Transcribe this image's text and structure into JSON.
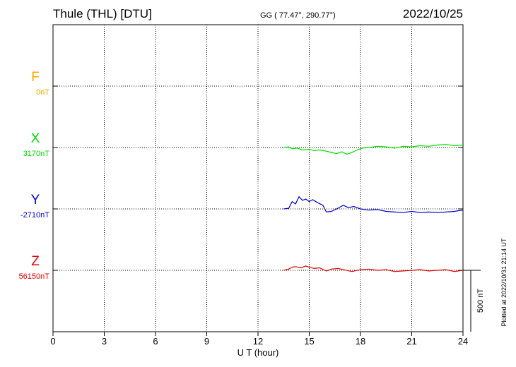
{
  "header": {
    "station": "Thule (THL)  [DTU]",
    "coords": "GG ( 77.47°, 290.77°)",
    "date": "2022/10/25"
  },
  "footer_note": "Plotted at 2022/10/31 21:14 UT",
  "scale_label": "500 nT",
  "colors": {
    "F": "#f5a800",
    "X": "#00dd00",
    "Y": "#0000cc",
    "Z": "#e00000"
  },
  "chart_data": {
    "type": "line",
    "xlabel": "U T (hour)",
    "xlim": [
      0,
      24
    ],
    "xticks": [
      "0",
      "3",
      "6",
      "9",
      "12",
      "15",
      "18",
      "21",
      "24"
    ],
    "grid": true,
    "scale_bar_nT": 500,
    "series": [
      {
        "name": "F",
        "baseline": "0nT",
        "x": [],
        "values": []
      },
      {
        "name": "X",
        "baseline": "3170nT",
        "x": [
          13.5,
          13.8,
          14.0,
          14.3,
          14.6,
          15.0,
          15.3,
          15.6,
          16.0,
          16.3,
          16.6,
          16.9,
          17.2,
          17.5,
          17.8,
          18.1,
          18.5,
          19.0,
          19.5,
          20.0,
          20.5,
          21.0,
          21.5,
          22.0,
          22.5,
          23.0,
          23.5,
          24.0
        ],
        "values": [
          0,
          5,
          -10,
          -5,
          -20,
          -15,
          -25,
          -20,
          -30,
          -40,
          -50,
          -35,
          -55,
          -40,
          -20,
          -5,
          0,
          10,
          5,
          -5,
          10,
          5,
          15,
          10,
          20,
          25,
          15,
          20
        ]
      },
      {
        "name": "Y",
        "baseline": "-2710nT",
        "x": [
          13.5,
          13.8,
          14.0,
          14.2,
          14.4,
          14.6,
          14.8,
          15.0,
          15.2,
          15.5,
          15.8,
          16.0,
          16.3,
          16.6,
          17.0,
          17.3,
          17.6,
          18.0,
          18.5,
          19.0,
          19.5,
          20.0,
          20.5,
          21.0,
          21.5,
          22.0,
          22.5,
          23.0,
          23.5,
          24.0
        ],
        "values": [
          0,
          5,
          60,
          40,
          100,
          70,
          80,
          60,
          75,
          50,
          30,
          -25,
          -20,
          0,
          30,
          10,
          20,
          0,
          -10,
          -5,
          -20,
          -25,
          -30,
          -20,
          -30,
          -25,
          -30,
          -25,
          -20,
          -10
        ]
      },
      {
        "name": "Z",
        "baseline": "56150nT",
        "x": [
          13.5,
          13.8,
          14.0,
          14.2,
          14.5,
          14.8,
          15.0,
          15.3,
          15.6,
          16.0,
          16.3,
          16.7,
          17.0,
          17.5,
          18.0,
          18.5,
          19.0,
          19.5,
          20.0,
          20.5,
          21.0,
          21.5,
          22.0,
          22.5,
          23.0,
          23.5,
          24.0
        ],
        "values": [
          0,
          10,
          25,
          30,
          20,
          35,
          25,
          15,
          20,
          -5,
          10,
          15,
          5,
          -10,
          5,
          10,
          0,
          5,
          -10,
          -5,
          0,
          5,
          -5,
          0,
          5,
          -10,
          0
        ]
      }
    ]
  }
}
